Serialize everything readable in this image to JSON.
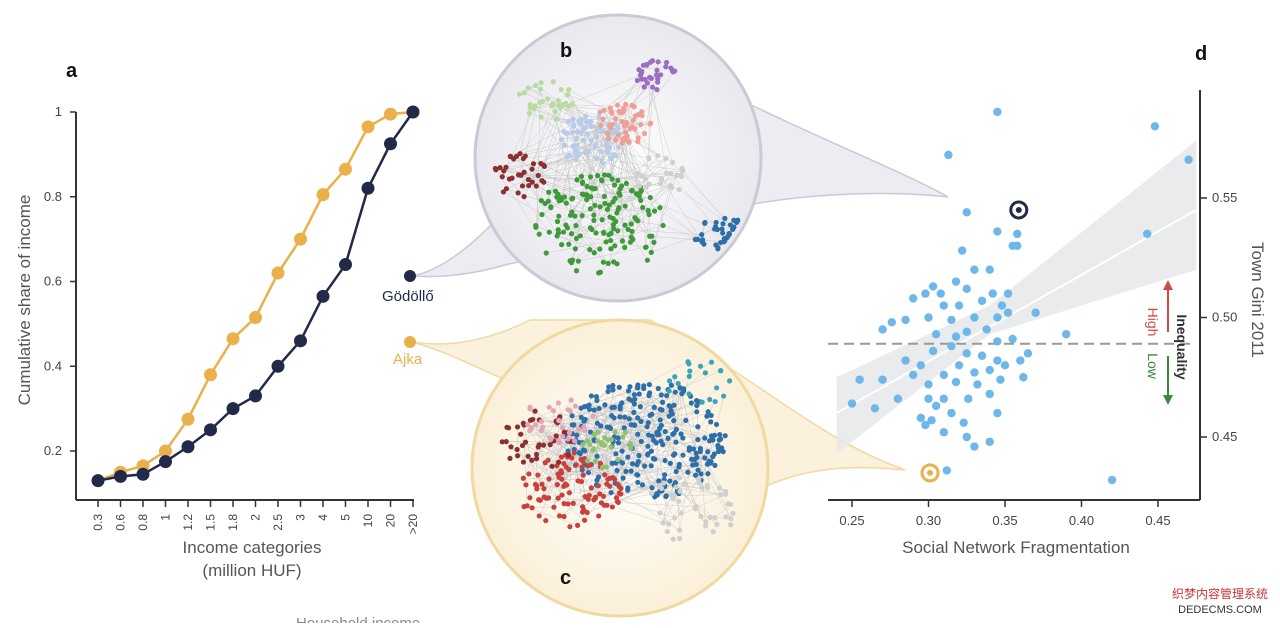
{
  "chart_data": [
    {
      "panel": "a",
      "type": "line",
      "panel_label": "a",
      "title": "",
      "xlabel_line1": "Income categories",
      "xlabel_line2": "(million HUF)",
      "ylabel": "Cumulative share of income",
      "categories": [
        "0.3",
        "0.6",
        "0.8",
        "1",
        "1.2",
        "1.5",
        "1.8",
        "2",
        "2.5",
        "3",
        "4",
        "5",
        "10",
        "20",
        ">20"
      ],
      "yticks": [
        "0.2",
        "0.4",
        "0.6",
        "0.8",
        "1"
      ],
      "ylim": [
        0.1,
        1.0
      ],
      "series": [
        {
          "name": "Ajka",
          "color": "#eab04a",
          "values": [
            0.13,
            0.15,
            0.165,
            0.2,
            0.275,
            0.38,
            0.465,
            0.515,
            0.62,
            0.7,
            0.805,
            0.865,
            0.965,
            0.995,
            1.0
          ]
        },
        {
          "name": "Gödöllő",
          "color": "#222a4a",
          "values": [
            0.13,
            0.14,
            0.145,
            0.175,
            0.21,
            0.25,
            0.3,
            0.33,
            0.4,
            0.46,
            0.565,
            0.64,
            0.82,
            0.925,
            1.0
          ]
        }
      ]
    },
    {
      "panel": "d",
      "type": "scatter",
      "panel_label": "d",
      "xlabel": "Social Network Fragmentation",
      "ylabel": "Town Gini 2011",
      "xticks": [
        "0.25",
        "0.30",
        "0.35",
        "0.40",
        "0.45"
      ],
      "yticks": [
        "0.45",
        "0.50",
        "0.55"
      ],
      "xlim": [
        0.24,
        0.475
      ],
      "ylim": [
        0.425,
        0.59
      ],
      "point_color": "#6eb7ea",
      "points": [
        [
          0.345,
          0.586
        ],
        [
          0.448,
          0.58
        ],
        [
          0.47,
          0.566
        ],
        [
          0.313,
          0.568
        ],
        [
          0.325,
          0.544
        ],
        [
          0.443,
          0.535
        ],
        [
          0.355,
          0.53
        ],
        [
          0.358,
          0.535
        ],
        [
          0.345,
          0.536
        ],
        [
          0.322,
          0.528
        ],
        [
          0.34,
          0.52
        ],
        [
          0.33,
          0.52
        ],
        [
          0.325,
          0.512
        ],
        [
          0.318,
          0.515
        ],
        [
          0.308,
          0.51
        ],
        [
          0.303,
          0.513
        ],
        [
          0.298,
          0.51
        ],
        [
          0.29,
          0.508
        ],
        [
          0.31,
          0.505
        ],
        [
          0.32,
          0.505
        ],
        [
          0.335,
          0.507
        ],
        [
          0.342,
          0.51
        ],
        [
          0.348,
          0.505
        ],
        [
          0.352,
          0.502
        ],
        [
          0.345,
          0.5
        ],
        [
          0.33,
          0.5
        ],
        [
          0.315,
          0.499
        ],
        [
          0.3,
          0.5
        ],
        [
          0.285,
          0.499
        ],
        [
          0.276,
          0.498
        ],
        [
          0.27,
          0.495
        ],
        [
          0.305,
          0.493
        ],
        [
          0.318,
          0.492
        ],
        [
          0.325,
          0.494
        ],
        [
          0.338,
          0.495
        ],
        [
          0.345,
          0.49
        ],
        [
          0.355,
          0.491
        ],
        [
          0.315,
          0.488
        ],
        [
          0.303,
          0.486
        ],
        [
          0.325,
          0.485
        ],
        [
          0.335,
          0.484
        ],
        [
          0.345,
          0.482
        ],
        [
          0.35,
          0.48
        ],
        [
          0.36,
          0.482
        ],
        [
          0.285,
          0.482
        ],
        [
          0.295,
          0.48
        ],
        [
          0.32,
          0.48
        ],
        [
          0.33,
          0.477
        ],
        [
          0.34,
          0.478
        ],
        [
          0.31,
          0.476
        ],
        [
          0.29,
          0.476
        ],
        [
          0.27,
          0.474
        ],
        [
          0.255,
          0.474
        ],
        [
          0.3,
          0.472
        ],
        [
          0.318,
          0.473
        ],
        [
          0.332,
          0.472
        ],
        [
          0.347,
          0.474
        ],
        [
          0.362,
          0.475
        ],
        [
          0.3,
          0.466
        ],
        [
          0.305,
          0.463
        ],
        [
          0.31,
          0.466
        ],
        [
          0.326,
          0.466
        ],
        [
          0.34,
          0.468
        ],
        [
          0.28,
          0.466
        ],
        [
          0.265,
          0.462
        ],
        [
          0.25,
          0.464
        ],
        [
          0.295,
          0.458
        ],
        [
          0.302,
          0.457
        ],
        [
          0.323,
          0.456
        ],
        [
          0.345,
          0.46
        ],
        [
          0.298,
          0.455
        ],
        [
          0.31,
          0.452
        ],
        [
          0.325,
          0.45
        ],
        [
          0.34,
          0.448
        ],
        [
          0.33,
          0.446
        ],
        [
          0.315,
          0.46
        ],
        [
          0.365,
          0.485
        ],
        [
          0.39,
          0.493
        ],
        [
          0.37,
          0.502
        ],
        [
          0.42,
          0.432
        ],
        [
          0.312,
          0.436
        ],
        [
          0.358,
          0.53
        ],
        [
          0.352,
          0.51
        ]
      ],
      "highlight": [
        {
          "name": "Gödöllő",
          "x": 0.359,
          "y": 0.545,
          "color": "#222a4a"
        },
        {
          "name": "Ajka",
          "x": 0.301,
          "y": 0.435,
          "color": "#eab04a"
        }
      ],
      "fit_line": [
        [
          0.24,
          0.46
        ],
        [
          0.475,
          0.545
        ]
      ],
      "ci_band": {
        "upper": [
          [
            0.24,
            0.475
          ],
          [
            0.34,
            0.505
          ],
          [
            0.475,
            0.574
          ]
        ],
        "lower": [
          [
            0.24,
            0.443
          ],
          [
            0.34,
            0.493
          ],
          [
            0.475,
            0.52
          ]
        ]
      },
      "threshold_y": 0.489,
      "annotation": {
        "title": "Inequality",
        "high": "High",
        "low": "Low",
        "high_color": "#d24b47",
        "low_color": "#3a8a3a"
      }
    }
  ],
  "networks": [
    {
      "panel_label": "b",
      "town": "Gödöllő"
    },
    {
      "panel_label": "c",
      "town": "Ajka"
    }
  ],
  "labels": {
    "godollo": "Gödöllő",
    "ajka": "Ajka",
    "watermark_top": "织梦内容管理系统",
    "watermark_bottom": "DEDECMS.COM",
    "bottom_cut": "Household income"
  }
}
